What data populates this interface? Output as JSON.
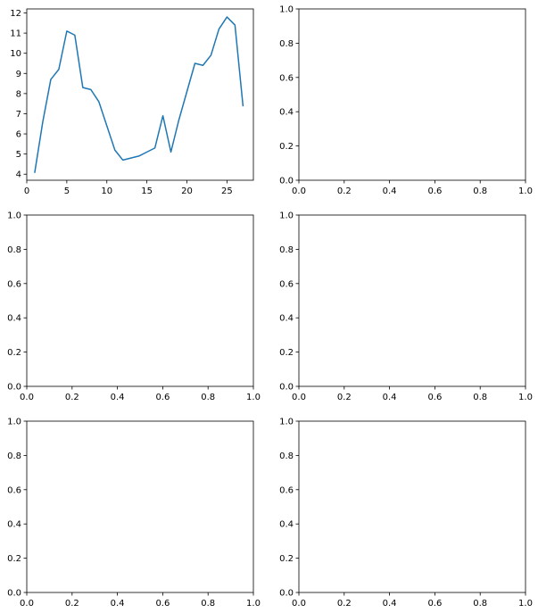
{
  "chart_data": [
    {
      "type": "line",
      "x": [
        1,
        2,
        3,
        4,
        5,
        6,
        7,
        8,
        9,
        10,
        11,
        12,
        13,
        14,
        15,
        16,
        17,
        18,
        19,
        20,
        21,
        22,
        23,
        24,
        25,
        26,
        27
      ],
      "series": [
        {
          "values": [
            4.1,
            6.6,
            8.7,
            9.2,
            11.1,
            10.9,
            8.3,
            8.2,
            7.6,
            6.4,
            5.2,
            4.7,
            4.8,
            4.9,
            5.1,
            5.3,
            6.9,
            5.1,
            6.7,
            8.1,
            9.5,
            9.4,
            9.9,
            11.2,
            11.8,
            11.4,
            7.4
          ],
          "color": "#1f77b4"
        }
      ],
      "xlim": [
        0,
        28.3
      ],
      "ylim": [
        3.7,
        12.2
      ],
      "xticks": [
        0,
        5,
        10,
        15,
        20,
        25
      ],
      "yticks": [
        4,
        5,
        6,
        7,
        8,
        9,
        10,
        11,
        12
      ],
      "title": "",
      "xlabel": "",
      "ylabel": "",
      "grid": false
    },
    {
      "type": "line",
      "series": [],
      "xlim": [
        0,
        1
      ],
      "ylim": [
        0,
        1
      ],
      "xticks": [
        "0.0",
        "0.2",
        "0.4",
        "0.6",
        "0.8",
        "1.0"
      ],
      "yticks": [
        "0.0",
        "0.2",
        "0.4",
        "0.6",
        "0.8",
        "1.0"
      ],
      "title": "",
      "xlabel": "",
      "ylabel": "",
      "grid": false
    },
    {
      "type": "line",
      "series": [],
      "xlim": [
        0,
        1
      ],
      "ylim": [
        0,
        1
      ],
      "xticks": [
        "0.0",
        "0.2",
        "0.4",
        "0.6",
        "0.8",
        "1.0"
      ],
      "yticks": [
        "0.0",
        "0.2",
        "0.4",
        "0.6",
        "0.8",
        "1.0"
      ],
      "title": "",
      "xlabel": "",
      "ylabel": "",
      "grid": false
    },
    {
      "type": "line",
      "series": [],
      "xlim": [
        0,
        1
      ],
      "ylim": [
        0,
        1
      ],
      "xticks": [
        "0.0",
        "0.2",
        "0.4",
        "0.6",
        "0.8",
        "1.0"
      ],
      "yticks": [
        "0.0",
        "0.2",
        "0.4",
        "0.6",
        "0.8",
        "1.0"
      ],
      "title": "",
      "xlabel": "",
      "ylabel": "",
      "grid": false
    },
    {
      "type": "line",
      "series": [],
      "xlim": [
        0,
        1
      ],
      "ylim": [
        0,
        1
      ],
      "xticks": [
        "0.0",
        "0.2",
        "0.4",
        "0.6",
        "0.8",
        "1.0"
      ],
      "yticks": [
        "0.0",
        "0.2",
        "0.4",
        "0.6",
        "0.8",
        "1.0"
      ],
      "title": "",
      "xlabel": "",
      "ylabel": "",
      "grid": false
    },
    {
      "type": "line",
      "series": [],
      "xlim": [
        0,
        1
      ],
      "ylim": [
        0,
        1
      ],
      "xticks": [
        "0.0",
        "0.2",
        "0.4",
        "0.6",
        "0.8",
        "1.0"
      ],
      "yticks": [
        "0.0",
        "0.2",
        "0.4",
        "0.6",
        "0.8",
        "1.0"
      ],
      "title": "",
      "xlabel": "",
      "ylabel": "",
      "grid": false
    }
  ]
}
